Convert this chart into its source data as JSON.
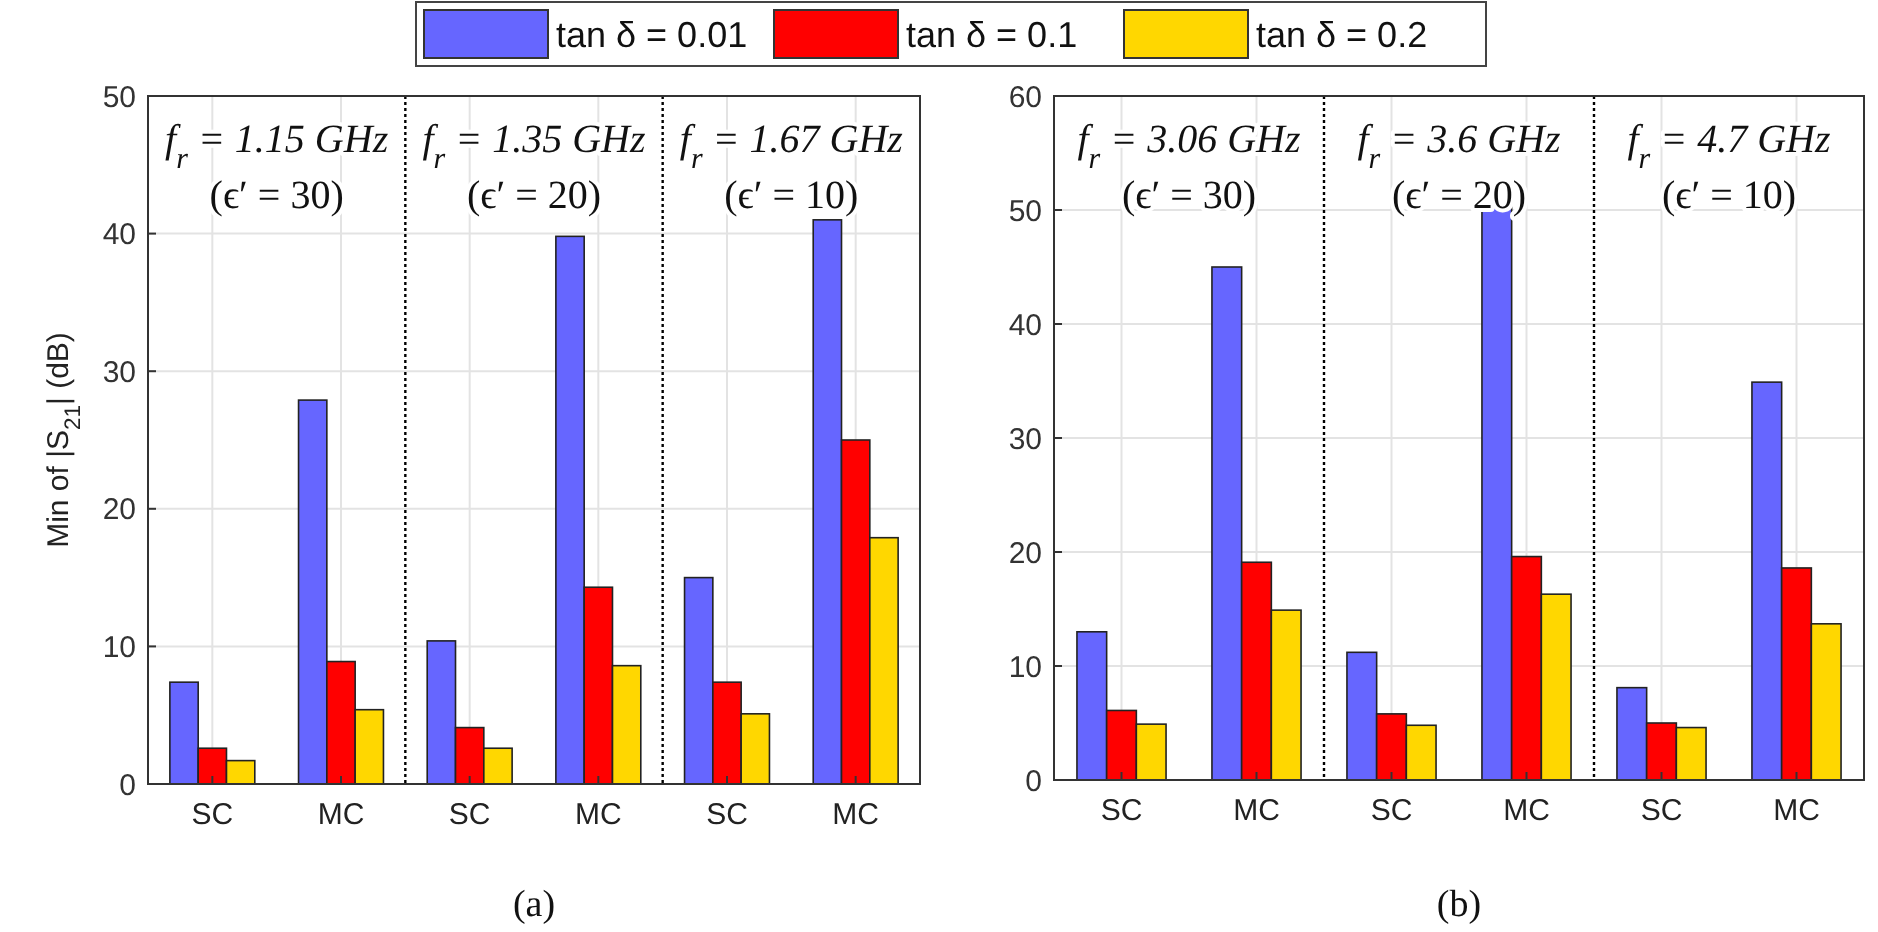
{
  "chart_data": [
    {
      "type": "bar",
      "title": "(a)",
      "ylabel": "Min of |S$_{21}$| (dB)",
      "categories": [
        "SC",
        "MC",
        "SC",
        "MC",
        "SC",
        "MC"
      ],
      "series": [
        {
          "name": "tan δ = 0.01",
          "color": "#6666ff",
          "values": [
            7.4,
            27.9,
            10.4,
            39.8,
            15,
            41
          ]
        },
        {
          "name": "tan δ = 0.1",
          "color": "#ff0000",
          "values": [
            2.6,
            8.9,
            4.1,
            14.3,
            7.4,
            25
          ]
        },
        {
          "name": "tan δ = 0.2",
          "color": "#ffd700",
          "values": [
            1.7,
            5.4,
            2.6,
            8.6,
            5.1,
            17.9
          ]
        }
      ],
      "ylim": [
        0,
        50
      ],
      "yticks": [
        0,
        10,
        20,
        30,
        40,
        50
      ],
      "grid": true,
      "legend": "top",
      "annotations": [
        "f$_{r}$ = 1.15 GHz",
        "(ϵ′ = 30)",
        "f$_{r}$ = 1.35 GHz",
        "(ϵ′ = 20)",
        "f$_{r}$ = 1.67 GHz",
        "(ϵ′ = 10)"
      ]
    },
    {
      "type": "bar",
      "title": "(b)",
      "categories": [
        "SC",
        "MC",
        "SC",
        "MC",
        "SC",
        "MC"
      ],
      "series": [
        {
          "color": "#6666ff",
          "values": [
            13,
            45,
            11.2,
            50.5,
            8.1,
            34.9
          ]
        },
        {
          "color": "#ff0000",
          "values": [
            6.1,
            19.1,
            5.8,
            19.6,
            5,
            18.6
          ]
        },
        {
          "color": "#ffd700",
          "values": [
            4.9,
            14.9,
            4.8,
            16.3,
            4.6,
            13.7
          ]
        }
      ],
      "ylim": [
        0,
        60
      ],
      "yticks": [
        0,
        10,
        20,
        30,
        40,
        50,
        60
      ],
      "grid": true,
      "annotations": [
        "f$_{r}$ = 3.06 GHz",
        "(ϵ′ = 30)",
        "f$_{r}$ = 3.6 GHz",
        "(ϵ′ = 20)",
        "f$_{r}$ = 4.7 GHz",
        "(ϵ′ = 10)"
      ]
    }
  ]
}
